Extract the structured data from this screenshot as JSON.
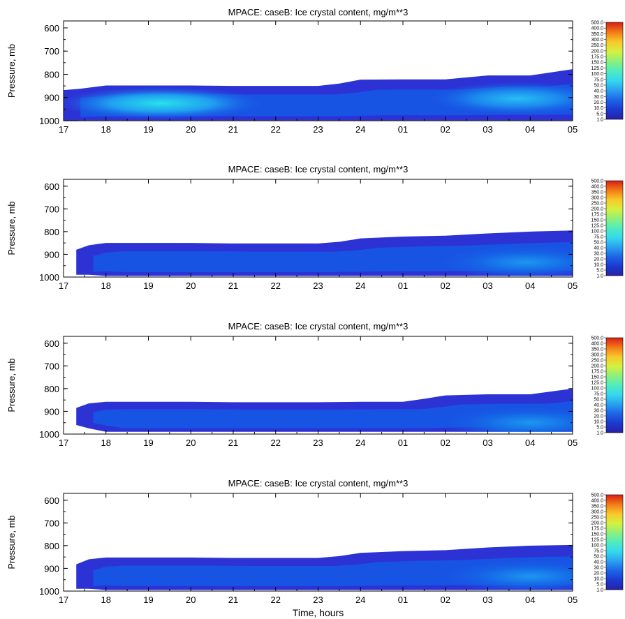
{
  "chart_data": [
    {
      "type": "heatmap",
      "title": "MPACE: caseB: Ice crystal content, mg/m**3",
      "ylabel": "Pressure, mb",
      "xlabel": "",
      "x_ticks": [
        "17",
        "18",
        "19",
        "20",
        "21",
        "22",
        "23",
        "24",
        "01",
        "02",
        "03",
        "04",
        "05"
      ],
      "y_ticks": [
        600,
        700,
        800,
        900,
        1000
      ],
      "ylim": [
        1000,
        570
      ],
      "colorbar_levels": [
        1.0,
        5.0,
        10.0,
        20.0,
        30.0,
        40.0,
        50.0,
        75.0,
        100.0,
        125.0,
        150.0,
        175.0,
        200.0,
        250.0,
        300.0,
        350.0,
        400.0,
        500.0
      ],
      "colorbar_labels": [
        "500.0",
        "400.0",
        "350.0",
        "300.0",
        "250.0",
        "200.0",
        "175.0",
        "150.0",
        "125.0",
        "100.0",
        "75.0",
        "50.0",
        "40.0",
        "30.0",
        "20.0",
        "10.0",
        "5.0",
        "1.0"
      ],
      "cloud": {
        "time": [
          17.0,
          17.4,
          18.0,
          19.0,
          20.0,
          21.0,
          22.0,
          23.0,
          23.5,
          24.0,
          25.0,
          26.0,
          27.0,
          28.0,
          29.0
        ],
        "top": [
          868,
          862,
          848,
          848,
          848,
          850,
          850,
          850,
          840,
          823,
          822,
          822,
          805,
          805,
          778
        ],
        "base": [
          1000,
          998,
          998,
          998,
          998,
          998,
          998,
          998,
          998,
          998,
          998,
          998,
          998,
          998,
          998
        ]
      },
      "peaks": [
        {
          "time": 19.3,
          "pressure": 925,
          "value": 40
        },
        {
          "time": 27.7,
          "pressure": 905,
          "value": 30
        }
      ]
    },
    {
      "type": "heatmap",
      "title": "MPACE: caseB: Ice crystal content, mg/m**3",
      "ylabel": "Pressure, mb",
      "xlabel": "",
      "x_ticks": [
        "17",
        "18",
        "19",
        "20",
        "21",
        "22",
        "23",
        "24",
        "01",
        "02",
        "03",
        "04",
        "05"
      ],
      "y_ticks": [
        600,
        700,
        800,
        900,
        1000
      ],
      "ylim": [
        1000,
        570
      ],
      "colorbar_levels": [
        1.0,
        5.0,
        10.0,
        20.0,
        30.0,
        40.0,
        50.0,
        75.0,
        100.0,
        125.0,
        150.0,
        175.0,
        200.0,
        250.0,
        300.0,
        350.0,
        400.0,
        500.0
      ],
      "colorbar_labels": [
        "500.0",
        "400.0",
        "350.0",
        "300.0",
        "250.0",
        "200.0",
        "175.0",
        "150.0",
        "125.0",
        "100.0",
        "75.0",
        "50.0",
        "40.0",
        "30.0",
        "20.0",
        "10.0",
        "5.0",
        "1.0"
      ],
      "cloud": {
        "time": [
          17.3,
          17.6,
          18.0,
          19.0,
          20.0,
          21.0,
          22.0,
          23.0,
          23.5,
          24.0,
          25.0,
          26.0,
          27.0,
          28.0,
          29.0
        ],
        "top": [
          880,
          860,
          850,
          850,
          850,
          852,
          852,
          852,
          845,
          830,
          822,
          818,
          808,
          800,
          795
        ],
        "base": [
          990,
          990,
          995,
          995,
          995,
          995,
          995,
          995,
          995,
          995,
          995,
          995,
          995,
          995,
          995
        ]
      },
      "peaks": [
        {
          "time": 27.9,
          "pressure": 935,
          "value": 20
        }
      ]
    },
    {
      "type": "heatmap",
      "title": "MPACE: caseB: Ice crystal content, mg/m**3",
      "ylabel": "Pressure, mb",
      "xlabel": "",
      "x_ticks": [
        "17",
        "18",
        "19",
        "20",
        "21",
        "22",
        "23",
        "24",
        "01",
        "02",
        "03",
        "04",
        "05"
      ],
      "y_ticks": [
        600,
        700,
        800,
        900,
        1000
      ],
      "ylim": [
        1000,
        570
      ],
      "colorbar_levels": [
        1.0,
        5.0,
        10.0,
        20.0,
        30.0,
        40.0,
        50.0,
        75.0,
        100.0,
        125.0,
        150.0,
        175.0,
        200.0,
        250.0,
        300.0,
        350.0,
        400.0,
        500.0
      ],
      "colorbar_labels": [
        "500.0",
        "400.0",
        "350.0",
        "300.0",
        "250.0",
        "200.0",
        "175.0",
        "150.0",
        "125.0",
        "100.0",
        "75.0",
        "50.0",
        "40.0",
        "30.0",
        "20.0",
        "10.0",
        "5.0",
        "1.0"
      ],
      "cloud": {
        "time": [
          17.3,
          17.6,
          18.0,
          19.0,
          20.0,
          21.0,
          22.0,
          23.0,
          24.0,
          25.0,
          25.5,
          26.0,
          27.0,
          28.0,
          29.0
        ],
        "top": [
          885,
          865,
          858,
          858,
          858,
          860,
          860,
          860,
          858,
          858,
          845,
          830,
          825,
          825,
          800
        ],
        "base": [
          960,
          975,
          990,
          990,
          990,
          990,
          990,
          990,
          990,
          990,
          990,
          990,
          990,
          990,
          990
        ]
      },
      "peaks": [
        {
          "time": 28.0,
          "pressure": 950,
          "value": 20
        }
      ]
    },
    {
      "type": "heatmap",
      "title": "MPACE: caseB: Ice crystal content, mg/m**3",
      "ylabel": "Pressure, mb",
      "xlabel": "Time, hours",
      "x_ticks": [
        "17",
        "18",
        "19",
        "20",
        "21",
        "22",
        "23",
        "24",
        "01",
        "02",
        "03",
        "04",
        "05"
      ],
      "y_ticks": [
        600,
        700,
        800,
        900,
        1000
      ],
      "ylim": [
        1000,
        570
      ],
      "colorbar_levels": [
        1.0,
        5.0,
        10.0,
        20.0,
        30.0,
        40.0,
        50.0,
        75.0,
        100.0,
        125.0,
        150.0,
        175.0,
        200.0,
        250.0,
        300.0,
        350.0,
        400.0,
        500.0
      ],
      "colorbar_labels": [
        "500.0",
        "400.0",
        "350.0",
        "300.0",
        "250.0",
        "200.0",
        "175.0",
        "150.0",
        "125.0",
        "100.0",
        "75.0",
        "50.0",
        "40.0",
        "30.0",
        "20.0",
        "10.0",
        "5.0",
        "1.0"
      ],
      "cloud": {
        "time": [
          17.3,
          17.6,
          18.0,
          19.0,
          20.0,
          21.0,
          22.0,
          23.0,
          23.5,
          24.0,
          25.0,
          26.0,
          27.0,
          28.0,
          29.0
        ],
        "top": [
          882,
          860,
          852,
          852,
          852,
          854,
          854,
          854,
          846,
          832,
          824,
          820,
          808,
          800,
          797
        ],
        "base": [
          990,
          990,
          995,
          995,
          995,
          995,
          995,
          995,
          995,
          995,
          995,
          995,
          995,
          995,
          995
        ]
      },
      "peaks": [
        {
          "time": 28.0,
          "pressure": 935,
          "value": 20
        }
      ]
    }
  ]
}
